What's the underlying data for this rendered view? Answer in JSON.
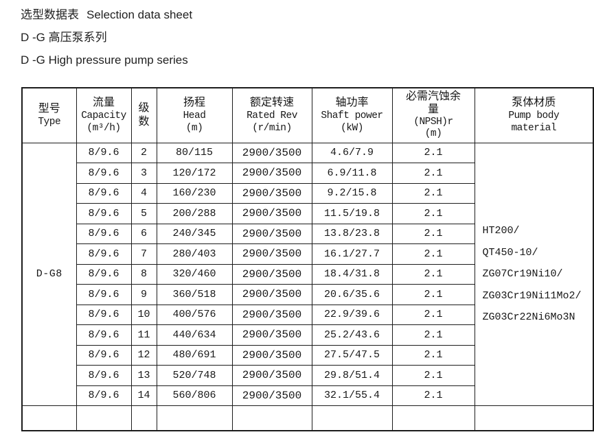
{
  "colors": {
    "background": "#ffffff",
    "text": "#1a1a1a",
    "border": "#1b1b1b"
  },
  "page": {
    "title_line1_zh": "选型数据表",
    "title_line1_en": "Selection data sheet",
    "title_line2": "D -G 高压泵系列",
    "title_line3": "D -G High pressure pump series"
  },
  "table": {
    "headers": {
      "type": {
        "zh": "型号",
        "en": "Type"
      },
      "capacity": {
        "zh": "流量",
        "en": "Capacity",
        "unit": "(m³/h)"
      },
      "stages": {
        "zh_line1": "级",
        "zh_line2": "数"
      },
      "head": {
        "zh": "扬程",
        "en": "Head",
        "unit": "(m)"
      },
      "rated_rev": {
        "zh": "额定转速",
        "en": "Rated Rev",
        "unit": "(r/min)"
      },
      "shaft_power": {
        "zh": "轴功率",
        "en": "Shaft power",
        "unit": "(kW)"
      },
      "npsh": {
        "zh_line1": "必需汽蚀余",
        "zh_line2": "量",
        "en": "(NPSH)r",
        "unit": "(m)"
      },
      "material": {
        "zh": "泵体材质",
        "en_line1": "Pump body",
        "en_line2": "material"
      }
    },
    "type_value": "D-G8",
    "material_lines": [
      "HT200/",
      "QT450-10/",
      "ZG07Cr19Ni10/",
      "ZG03Cr19Ni11Mo2/",
      "ZG03Cr22Ni6Mo3N"
    ],
    "rows": [
      {
        "capacity": "8/9.6",
        "stages": "2",
        "head": "80/115",
        "rated_rev": "2900/3500",
        "shaft_power": "4.6/7.9",
        "npsh": "2.1"
      },
      {
        "capacity": "8/9.6",
        "stages": "3",
        "head": "120/172",
        "rated_rev": "2900/3500",
        "shaft_power": "6.9/11.8",
        "npsh": "2.1"
      },
      {
        "capacity": "8/9.6",
        "stages": "4",
        "head": "160/230",
        "rated_rev": "2900/3500",
        "shaft_power": "9.2/15.8",
        "npsh": "2.1"
      },
      {
        "capacity": "8/9.6",
        "stages": "5",
        "head": "200/288",
        "rated_rev": "2900/3500",
        "shaft_power": "11.5/19.8",
        "npsh": "2.1"
      },
      {
        "capacity": "8/9.6",
        "stages": "6",
        "head": "240/345",
        "rated_rev": "2900/3500",
        "shaft_power": "13.8/23.8",
        "npsh": "2.1"
      },
      {
        "capacity": "8/9.6",
        "stages": "7",
        "head": "280/403",
        "rated_rev": "2900/3500",
        "shaft_power": "16.1/27.7",
        "npsh": "2.1"
      },
      {
        "capacity": "8/9.6",
        "stages": "8",
        "head": "320/460",
        "rated_rev": "2900/3500",
        "shaft_power": "18.4/31.8",
        "npsh": "2.1"
      },
      {
        "capacity": "8/9.6",
        "stages": "9",
        "head": "360/518",
        "rated_rev": "2900/3500",
        "shaft_power": "20.6/35.6",
        "npsh": "2.1"
      },
      {
        "capacity": "8/9.6",
        "stages": "10",
        "head": "400/576",
        "rated_rev": "2900/3500",
        "shaft_power": "22.9/39.6",
        "npsh": "2.1"
      },
      {
        "capacity": "8/9.6",
        "stages": "11",
        "head": "440/634",
        "rated_rev": "2900/3500",
        "shaft_power": "25.2/43.6",
        "npsh": "2.1"
      },
      {
        "capacity": "8/9.6",
        "stages": "12",
        "head": "480/691",
        "rated_rev": "2900/3500",
        "shaft_power": "27.5/47.5",
        "npsh": "2.1"
      },
      {
        "capacity": "8/9.6",
        "stages": "13",
        "head": "520/748",
        "rated_rev": "2900/3500",
        "shaft_power": "29.8/51.4",
        "npsh": "2.1"
      },
      {
        "capacity": "8/9.6",
        "stages": "14",
        "head": "560/806",
        "rated_rev": "2900/3500",
        "shaft_power": "32.1/55.4",
        "npsh": "2.1"
      }
    ]
  }
}
